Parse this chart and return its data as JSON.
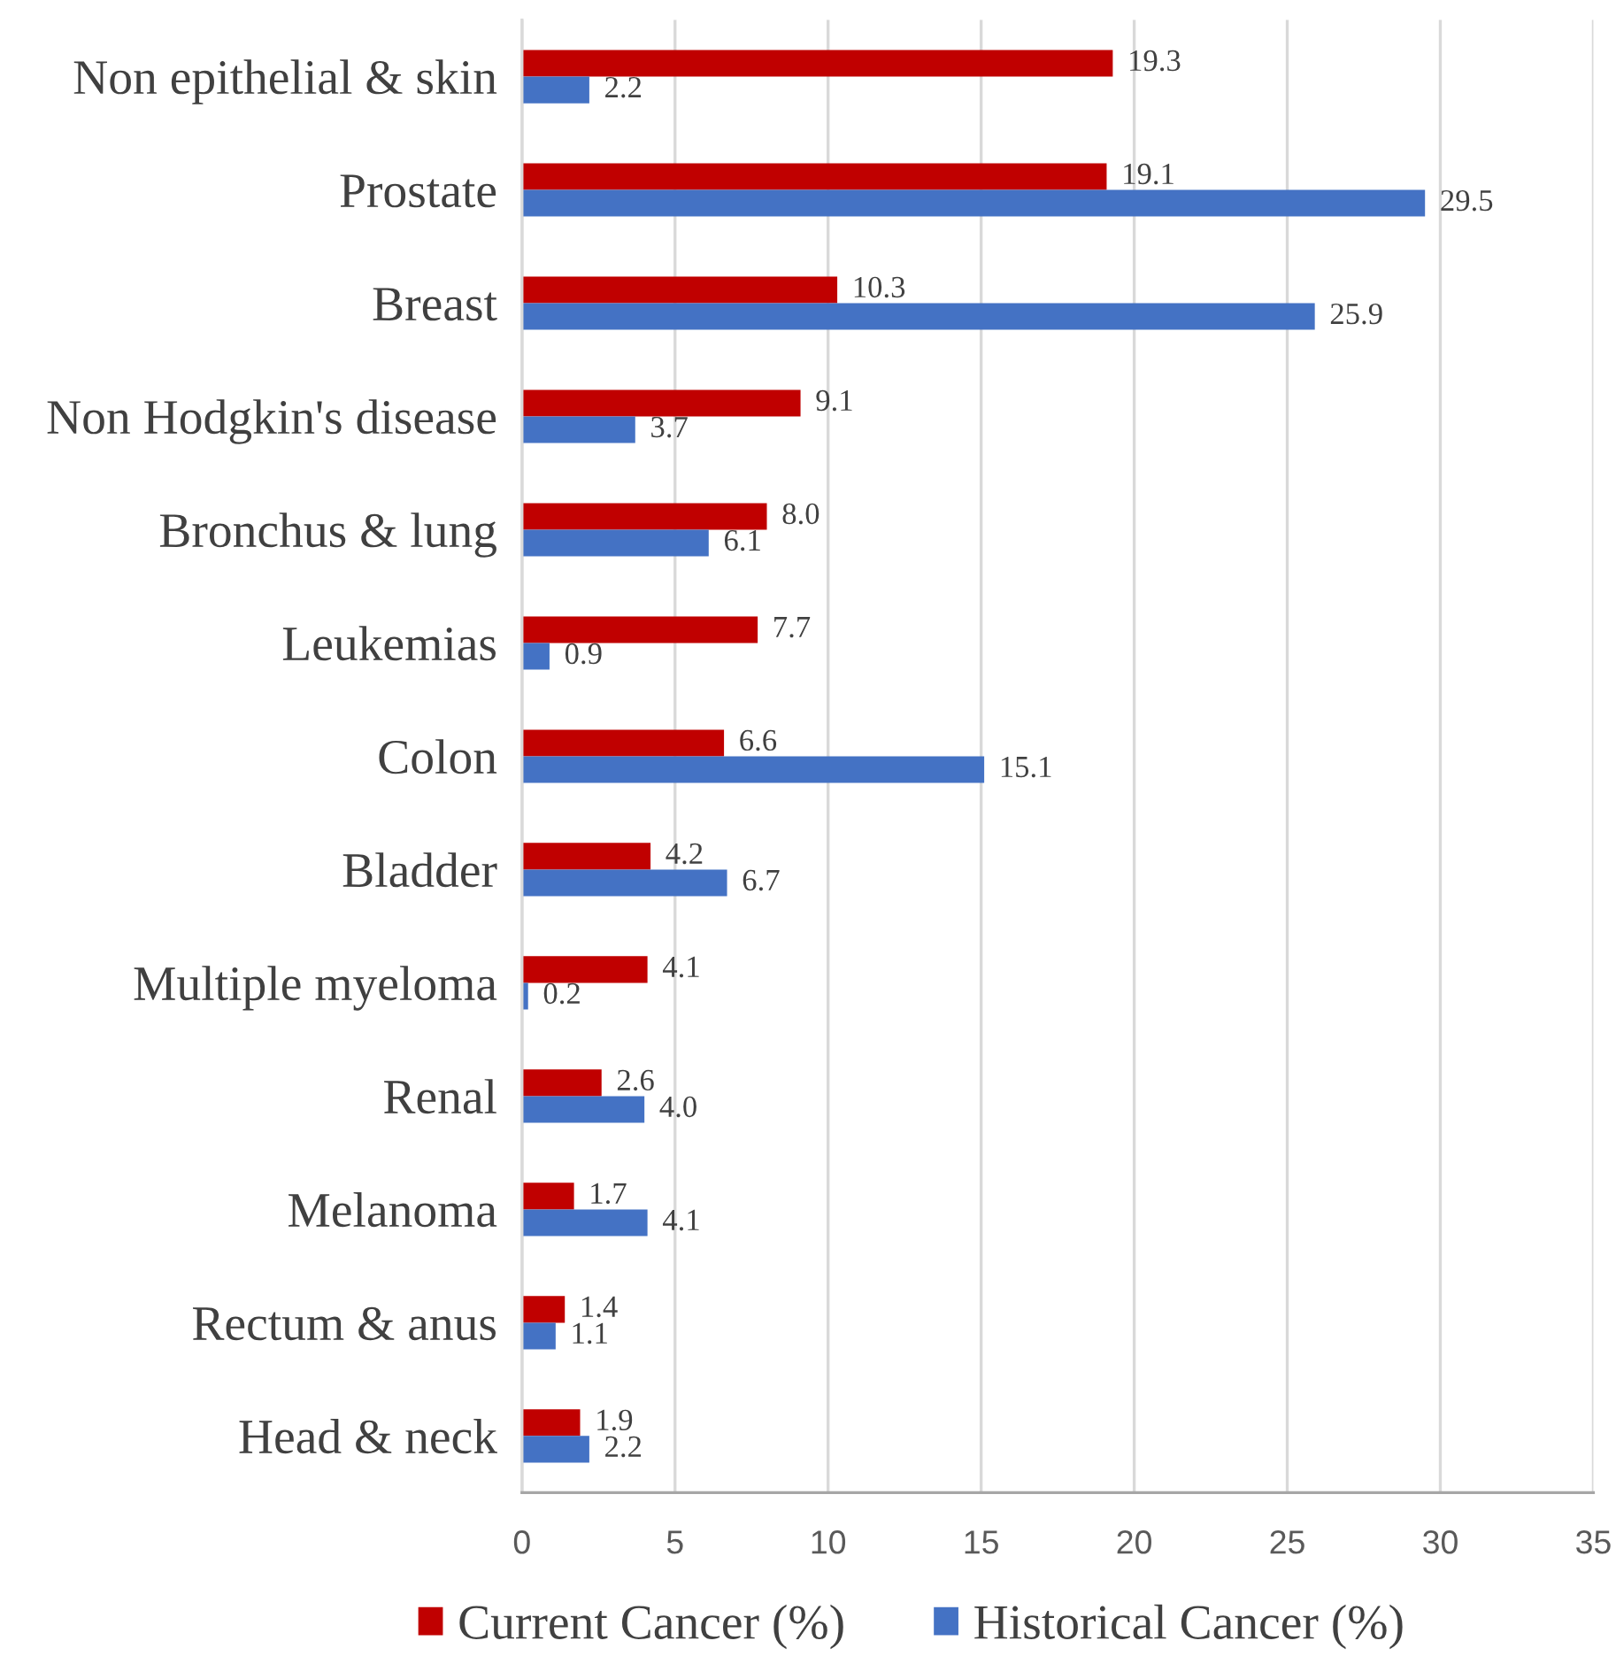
{
  "chart_data": {
    "type": "bar",
    "orientation": "horizontal",
    "categories": [
      "Non epithelial & skin",
      "Prostate",
      "Breast",
      "Non Hodgkin's disease",
      "Bronchus & lung",
      "Leukemias",
      "Colon",
      "Bladder",
      "Multiple myeloma",
      "Renal",
      "Melanoma",
      "Rectum & anus",
      "Head & neck"
    ],
    "series": [
      {
        "name": "Current Cancer (%)",
        "color": "#c00000",
        "values": [
          19.3,
          19.1,
          10.3,
          9.1,
          8.0,
          7.7,
          6.6,
          4.2,
          4.1,
          2.6,
          1.7,
          1.4,
          1.9
        ],
        "value_labels": [
          "19.3",
          "19.1",
          "10.3",
          "9.1",
          "8.0",
          "7.7",
          "6.6",
          "4.2",
          "4.1",
          "2.6",
          "1.7",
          "1.4",
          "1.9"
        ]
      },
      {
        "name": "Historical Cancer (%)",
        "color": "#4472c4",
        "values": [
          2.2,
          29.5,
          25.9,
          3.7,
          6.1,
          0.9,
          15.1,
          6.7,
          0.2,
          4.0,
          4.1,
          1.1,
          2.2
        ],
        "value_labels": [
          "2.2",
          "29.5",
          "25.9",
          "3.7",
          "6.1",
          "0.9",
          "15.1",
          "6.7",
          "0.2",
          "4.0",
          "4.1",
          "1.1",
          "2.2"
        ]
      }
    ],
    "xlim": [
      0,
      35
    ],
    "xticks": [
      0,
      5,
      10,
      15,
      20,
      25,
      30,
      35
    ],
    "grid": "x",
    "legend": "bottom"
  }
}
